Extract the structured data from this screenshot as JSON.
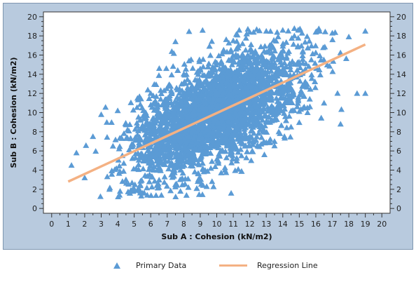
{
  "chart_data": {
    "type": "scatter",
    "xlabel": "Sub A : Cohesion (kN/m2)",
    "ylabel": "Sub B : Cohesion (kN/m2)",
    "xlim": [
      -0.5,
      20.5
    ],
    "ylim": [
      -0.5,
      20.5
    ],
    "x_ticks": [
      0,
      1,
      2,
      3,
      4,
      5,
      6,
      7,
      8,
      9,
      10,
      11,
      12,
      13,
      14,
      15,
      16,
      17,
      18,
      19,
      20
    ],
    "y_ticks": [
      0,
      2,
      4,
      6,
      8,
      10,
      12,
      14,
      16,
      18,
      20
    ],
    "grid": false,
    "legend_position": "bottom",
    "series": [
      {
        "name": "Primary Data",
        "marker": "triangle",
        "color": "#5b9bd5",
        "cloud": {
          "x_range": [
            1.0,
            19.0
          ],
          "correlation": 0.8,
          "x_mean": 10.0,
          "y_mean": 10.0,
          "sample_points": [
            [
              1.2,
              4.5
            ],
            [
              1.5,
              5.8
            ],
            [
              2.0,
              3.2
            ],
            [
              2.5,
              7.5
            ],
            [
              3.0,
              9.8
            ],
            [
              3.5,
              2.0
            ],
            [
              4.0,
              10.2
            ],
            [
              4.5,
              3.0
            ],
            [
              5.2,
              11.5
            ],
            [
              5.5,
              1.6
            ],
            [
              6.0,
              12.0
            ],
            [
              6.5,
              2.2
            ],
            [
              7.5,
              17.4
            ],
            [
              7.8,
              1.8
            ],
            [
              8.5,
              12.8
            ],
            [
              9.0,
              2.8
            ],
            [
              10.0,
              15.2
            ],
            [
              10.5,
              4.0
            ],
            [
              11.0,
              17.5
            ],
            [
              11.5,
              5.5
            ],
            [
              12.0,
              18.4
            ],
            [
              12.5,
              6.5
            ],
            [
              13.0,
              18.5
            ],
            [
              13.5,
              7.0
            ],
            [
              14.0,
              18.6
            ],
            [
              14.5,
              8.5
            ],
            [
              15.0,
              18.6
            ],
            [
              15.5,
              10.0
            ],
            [
              16.0,
              18.4
            ],
            [
              16.5,
              11.0
            ],
            [
              17.0,
              18.3
            ],
            [
              17.5,
              8.8
            ],
            [
              18.0,
              17.9
            ],
            [
              18.5,
              12.0
            ],
            [
              19.0,
              18.5
            ],
            [
              19.0,
              12.0
            ]
          ]
        }
      },
      {
        "name": "Regression Line",
        "type": "line",
        "color": "#f4b183",
        "x": [
          1.0,
          19.0
        ],
        "y": [
          2.8,
          17.1
        ]
      }
    ]
  }
}
